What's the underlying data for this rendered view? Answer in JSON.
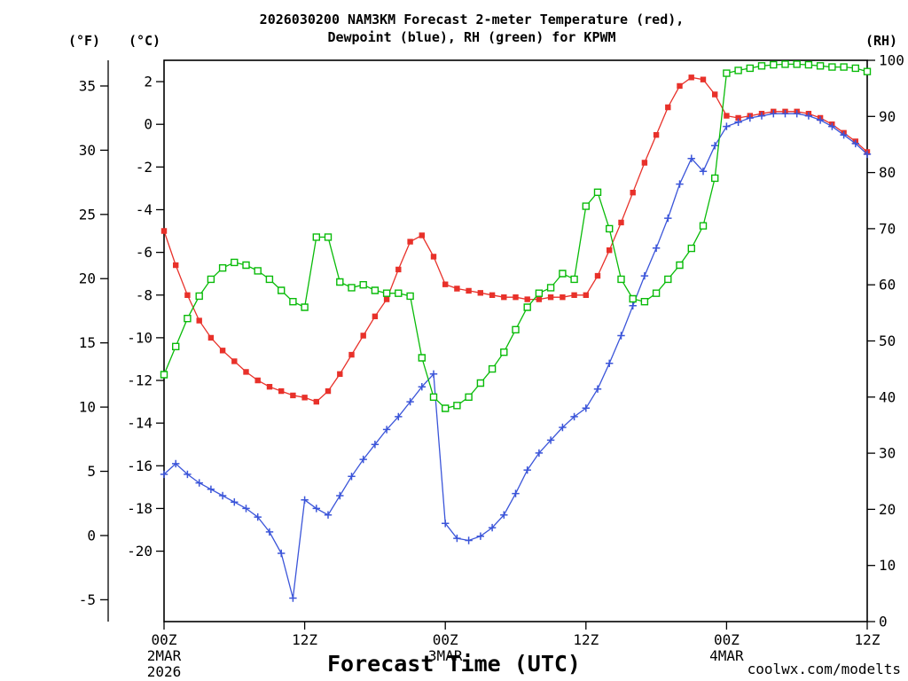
{
  "title": {
    "line1": "2026030200 NAM3KM Forecast 2-meter Temperature (red),",
    "line2": "Dewpoint (blue), RH (green) for KPWM"
  },
  "axis_headers": {
    "fahrenheit": "(°F)",
    "celsius": "(°C)",
    "rh": "(RH)"
  },
  "x_axis": {
    "label": "Forecast Time (UTC)",
    "range_hours": [
      0,
      60
    ],
    "ticks": [
      {
        "hour": 0,
        "line1": "00Z",
        "line2": "2MAR",
        "line3": "2026"
      },
      {
        "hour": 12,
        "line1": "12Z",
        "line2": "",
        "line3": ""
      },
      {
        "hour": 24,
        "line1": "00Z",
        "line2": "3MAR",
        "line3": ""
      },
      {
        "hour": 36,
        "line1": "12Z",
        "line2": "",
        "line3": ""
      },
      {
        "hour": 48,
        "line1": "00Z",
        "line2": "4MAR",
        "line3": ""
      },
      {
        "hour": 60,
        "line1": "12Z",
        "line2": "",
        "line3": ""
      }
    ]
  },
  "y_axes": {
    "fahrenheit": {
      "ticks": [
        35,
        30,
        25,
        20,
        15,
        10,
        5,
        0,
        -5
      ],
      "domain": [
        37.0,
        -6.7
      ]
    },
    "celsius": {
      "ticks": [
        2,
        0,
        -2,
        -4,
        -6,
        -8,
        -10,
        -12,
        -14,
        -16,
        -18,
        -20
      ],
      "domain": [
        3.0,
        -23.3
      ]
    },
    "rh": {
      "ticks": [
        100,
        90,
        80,
        70,
        60,
        50,
        40,
        30,
        20,
        10,
        0
      ],
      "domain": [
        100,
        0
      ]
    }
  },
  "watermark": {
    "text": "coolwx.com/modelts",
    "color": "#f4827d"
  },
  "chart_data": {
    "type": "line",
    "title": "2026030200 NAM3KM Forecast 2-meter Temperature (red), Dewpoint (blue), RH (green) for KPWM",
    "station": "KPWM",
    "model_run": "2026030200 NAM3KM",
    "x_unit": "forecast hour from 00Z 2MAR2026",
    "x_hours": [
      0,
      1,
      2,
      3,
      4,
      5,
      6,
      7,
      8,
      9,
      10,
      11,
      12,
      13,
      14,
      15,
      16,
      17,
      18,
      19,
      20,
      21,
      22,
      23,
      24,
      25,
      26,
      27,
      28,
      29,
      30,
      31,
      32,
      33,
      34,
      35,
      36,
      37,
      38,
      39,
      40,
      41,
      42,
      43,
      44,
      45,
      46,
      47,
      48,
      49,
      50,
      51,
      52,
      53,
      54,
      55,
      56,
      57,
      58,
      59,
      60
    ],
    "series": [
      {
        "name": "2-meter Temperature",
        "unit": "°C",
        "color": "#e8312a",
        "marker": "filled-square",
        "axis": "celsius",
        "values": [
          -5.0,
          -6.6,
          -8.0,
          -9.2,
          -10.0,
          -10.6,
          -11.1,
          -11.6,
          -12.0,
          -12.3,
          -12.5,
          -12.7,
          -12.8,
          -13.0,
          -12.5,
          -11.7,
          -10.8,
          -9.9,
          -9.0,
          -8.2,
          -6.8,
          -5.5,
          -5.2,
          -6.2,
          -7.5,
          -7.7,
          -7.8,
          -7.9,
          -8.0,
          -8.1,
          -8.1,
          -8.2,
          -8.2,
          -8.1,
          -8.1,
          -8.0,
          -8.0,
          -7.1,
          -5.9,
          -4.6,
          -3.2,
          -1.8,
          -0.5,
          0.8,
          1.8,
          2.2,
          2.1,
          1.4,
          0.4,
          0.3,
          0.4,
          0.5,
          0.6,
          0.6,
          0.6,
          0.5,
          0.3,
          0.0,
          -0.4,
          -0.8,
          -1.3
        ]
      },
      {
        "name": "Dewpoint",
        "unit": "°C",
        "color": "#3b55d9",
        "marker": "plus",
        "axis": "celsius",
        "values": [
          -16.4,
          -15.9,
          -16.4,
          -16.8,
          -17.1,
          -17.4,
          -17.7,
          -18.0,
          -18.4,
          -19.1,
          -20.1,
          -22.2,
          -17.6,
          -18.0,
          -18.3,
          -17.4,
          -16.5,
          -15.7,
          -15.0,
          -14.3,
          -13.7,
          -13.0,
          -12.3,
          -11.7,
          -18.7,
          -19.4,
          -19.5,
          -19.3,
          -18.9,
          -18.3,
          -17.3,
          -16.2,
          -15.4,
          -14.8,
          -14.2,
          -13.7,
          -13.3,
          -12.4,
          -11.2,
          -9.9,
          -8.5,
          -7.1,
          -5.8,
          -4.4,
          -2.8,
          -1.6,
          -2.2,
          -1.0,
          -0.1,
          0.1,
          0.3,
          0.4,
          0.5,
          0.5,
          0.5,
          0.4,
          0.2,
          -0.1,
          -0.5,
          -0.9,
          -1.4
        ]
      },
      {
        "name": "Relative Humidity",
        "unit": "%",
        "color": "#09bb09",
        "marker": "open-square",
        "axis": "rh",
        "values": [
          44,
          49,
          54,
          58,
          61,
          63,
          64,
          63.5,
          62.5,
          61,
          59,
          57,
          56,
          68.5,
          68.5,
          60.5,
          59.5,
          60,
          59,
          58.5,
          58.5,
          58,
          47,
          40,
          38,
          38.5,
          40,
          42.5,
          45,
          48,
          52,
          56,
          58.5,
          59.5,
          62,
          61,
          74,
          76.5,
          70,
          61,
          57.5,
          57,
          58.5,
          61,
          63.5,
          66.5,
          70.5,
          79,
          97.7,
          98.2,
          98.6,
          99,
          99.2,
          99.3,
          99.3,
          99.2,
          99,
          98.8,
          98.8,
          98.6,
          98
        ]
      }
    ]
  }
}
